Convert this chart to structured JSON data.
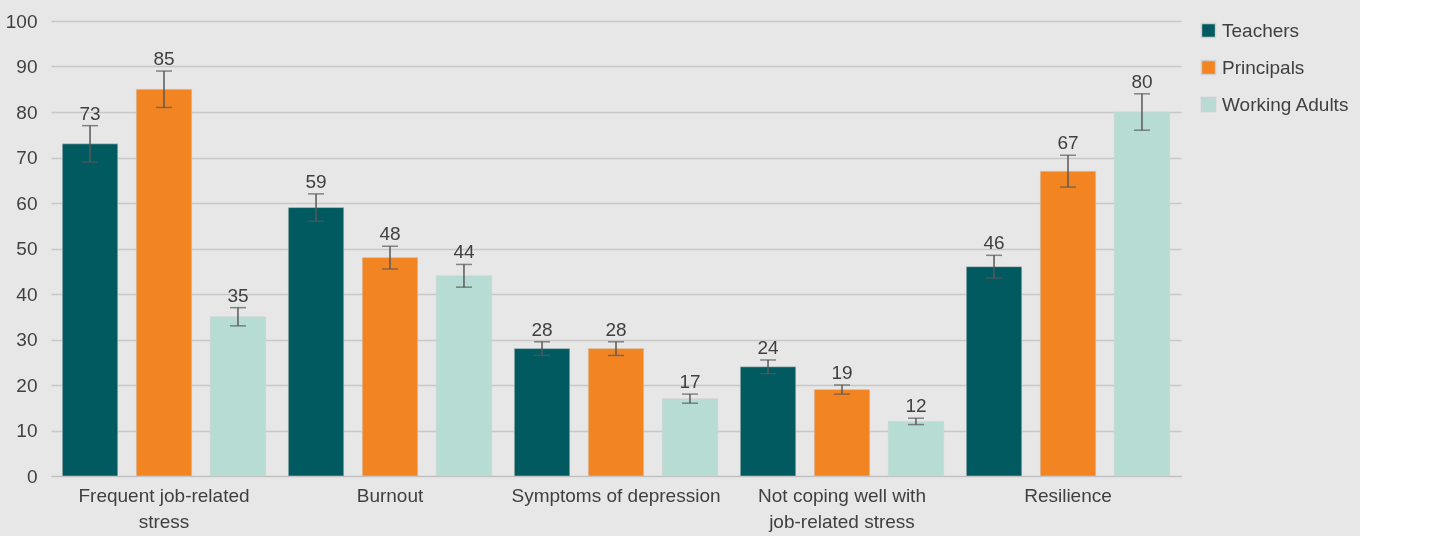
{
  "chart_data": {
    "type": "bar",
    "categories": [
      "Frequent job-related stress",
      "Burnout",
      "Symptoms of depression",
      "Not coping well with job-related stress",
      "Resilience"
    ],
    "series": [
      {
        "name": "Teachers",
        "color": "#005a5f",
        "values": [
          73,
          59,
          28,
          24,
          46
        ],
        "errors": [
          4,
          3,
          1.5,
          1.5,
          2.5
        ]
      },
      {
        "name": "Principals",
        "color": "#f28522",
        "values": [
          85,
          48,
          28,
          19,
          67
        ],
        "errors": [
          4,
          2.5,
          1.5,
          1,
          3.5
        ]
      },
      {
        "name": "Working Adults",
        "color": "#b6dcd4",
        "values": [
          35,
          44,
          17,
          12,
          80
        ],
        "errors": [
          2,
          2.5,
          1,
          0.7,
          4
        ]
      }
    ],
    "ylim": [
      0,
      100
    ],
    "yticks": [
      0,
      10,
      20,
      30,
      40,
      50,
      60,
      70,
      80,
      90,
      100
    ],
    "grid": "y",
    "legend": "right",
    "data_labels": true
  }
}
